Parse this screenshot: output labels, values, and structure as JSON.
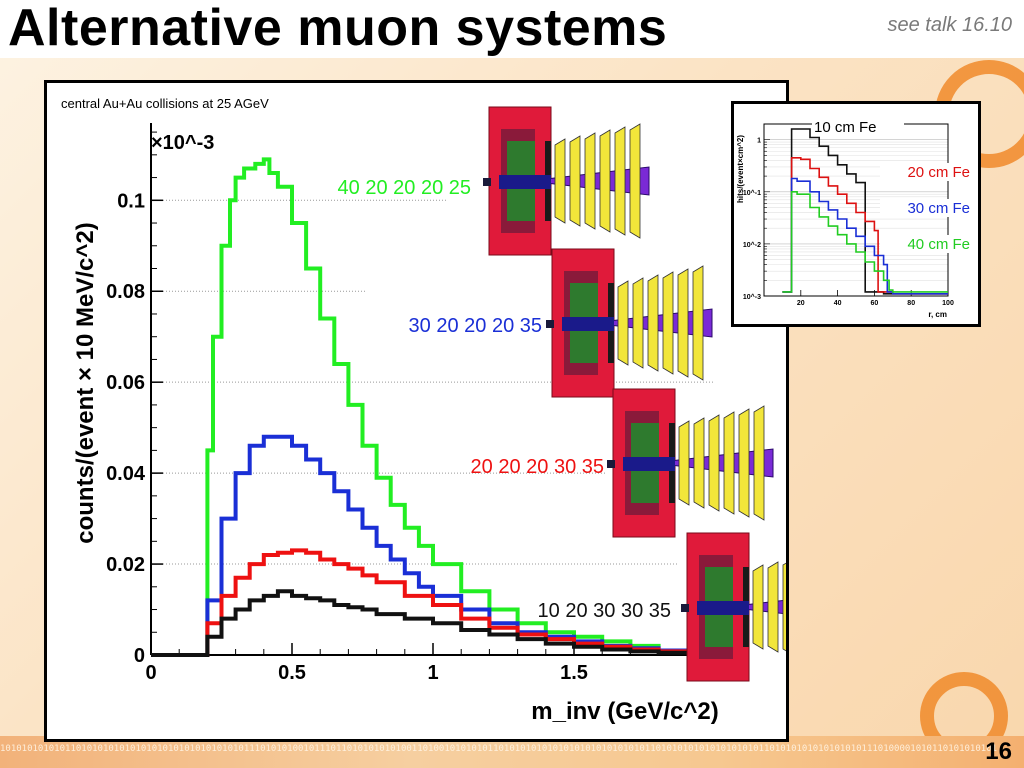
{
  "slide": {
    "title": "Alternative muon systems",
    "see_talk": "see talk 16.10",
    "page_number": "16",
    "binary_strip": "1010101010101101010101010101010101010101010101110101010010111011010101010100110100101010101101010101010101010101010101011010101010101010101011010101010101010101110100001010110101010101",
    "colors": {
      "accent": "#f08a2a",
      "background": "#fbe3c4"
    }
  },
  "chart_data": [
    {
      "type": "line",
      "title": "central Au+Au collisions at 25 AGeV",
      "xlabel": "m_inv (GeV/c^2)",
      "ylabel": "counts/(event × 10 MeV/c^2)",
      "y_multiplier": "×10^-3",
      "xlim": [
        0,
        2.0
      ],
      "ylim": [
        0,
        0.117
      ],
      "xticks": [
        "0",
        "0.5",
        "1",
        "1.5"
      ],
      "yticks": [
        "0",
        "0.02",
        "0.04",
        "0.06",
        "0.08",
        "0.1"
      ],
      "grid": "partial horizontal dotted",
      "series": [
        {
          "name": "40 20 20 20 25",
          "color": "#22ee22",
          "x": [
            0.19,
            0.2,
            0.22,
            0.25,
            0.28,
            0.3,
            0.33,
            0.35,
            0.37,
            0.4,
            0.42,
            0.45,
            0.5,
            0.55,
            0.6,
            0.65,
            0.7,
            0.75,
            0.8,
            0.85,
            0.9,
            0.95,
            1.0,
            1.1,
            1.2,
            1.3,
            1.4,
            1.5,
            1.6,
            1.7,
            1.8,
            1.9
          ],
          "y": [
            0,
            0.045,
            0.07,
            0.09,
            0.1,
            0.105,
            0.107,
            0.107,
            0.108,
            0.109,
            0.106,
            0.103,
            0.095,
            0.085,
            0.074,
            0.064,
            0.055,
            0.046,
            0.039,
            0.033,
            0.028,
            0.024,
            0.02,
            0.014,
            0.01,
            0.007,
            0.005,
            0.004,
            0.003,
            0.002,
            0.001,
            0.0005
          ]
        },
        {
          "name": "30 20 20 20 35",
          "color": "#1a2fd6",
          "x": [
            0.19,
            0.2,
            0.25,
            0.3,
            0.35,
            0.4,
            0.45,
            0.5,
            0.55,
            0.6,
            0.65,
            0.7,
            0.75,
            0.8,
            0.85,
            0.9,
            0.95,
            1.0,
            1.1,
            1.2,
            1.3,
            1.4,
            1.5,
            1.6,
            1.7,
            1.8,
            1.9
          ],
          "y": [
            0,
            0.012,
            0.03,
            0.04,
            0.046,
            0.048,
            0.048,
            0.046,
            0.043,
            0.04,
            0.036,
            0.032,
            0.028,
            0.024,
            0.021,
            0.018,
            0.015,
            0.013,
            0.01,
            0.007,
            0.005,
            0.004,
            0.003,
            0.002,
            0.0015,
            0.001,
            0.0005
          ]
        },
        {
          "name": "20 20 20 30 35",
          "color": "#ee1111",
          "x": [
            0.19,
            0.2,
            0.25,
            0.3,
            0.35,
            0.4,
            0.45,
            0.5,
            0.55,
            0.6,
            0.65,
            0.7,
            0.75,
            0.8,
            0.9,
            1.0,
            1.1,
            1.2,
            1.3,
            1.4,
            1.5,
            1.6,
            1.7,
            1.8,
            1.9
          ],
          "y": [
            0,
            0.007,
            0.013,
            0.017,
            0.02,
            0.022,
            0.0225,
            0.023,
            0.0225,
            0.021,
            0.02,
            0.019,
            0.0175,
            0.016,
            0.013,
            0.011,
            0.008,
            0.006,
            0.0045,
            0.0035,
            0.0025,
            0.0018,
            0.0012,
            0.0008,
            0.0004
          ]
        },
        {
          "name": "10 20 30 30 35",
          "color": "#111111",
          "x": [
            0.19,
            0.2,
            0.25,
            0.3,
            0.35,
            0.4,
            0.45,
            0.5,
            0.55,
            0.6,
            0.65,
            0.7,
            0.75,
            0.8,
            0.9,
            1.0,
            1.1,
            1.2,
            1.3,
            1.4,
            1.5,
            1.6,
            1.7,
            1.8,
            1.9
          ],
          "y": [
            0,
            0.004,
            0.008,
            0.01,
            0.012,
            0.013,
            0.014,
            0.013,
            0.0125,
            0.012,
            0.011,
            0.0105,
            0.01,
            0.009,
            0.008,
            0.007,
            0.0055,
            0.0045,
            0.0035,
            0.0025,
            0.0018,
            0.0012,
            0.0008,
            0.0005,
            0.0003
          ]
        }
      ]
    },
    {
      "type": "line",
      "title": "",
      "xlabel": "r, cm",
      "ylabel": "hits/(event×cm^2)",
      "yscale": "log",
      "xlim": [
        0,
        100
      ],
      "ylim": [
        0.001,
        2
      ],
      "xticks": [
        "20",
        "40",
        "60",
        "80",
        "100"
      ],
      "yticks": [
        "10^-3",
        "10^-2",
        "10^-1",
        "1"
      ],
      "grid": "horizontal",
      "series": [
        {
          "name": "10 cm Fe",
          "color": "#111111",
          "x": [
            10,
            14,
            15,
            20,
            25,
            30,
            35,
            40,
            45,
            50,
            55,
            60,
            65,
            70,
            75,
            80,
            90,
            100
          ],
          "y": [
            0.0012,
            0.0012,
            1.6,
            1.6,
            1.1,
            0.75,
            0.5,
            0.33,
            0.22,
            0.15,
            0.0012,
            0.0012,
            0.0011,
            0.0011,
            0.0011,
            0.0011,
            0.0011,
            0.0011
          ]
        },
        {
          "name": "20 cm Fe",
          "color": "#dd1111",
          "x": [
            10,
            14,
            15,
            20,
            25,
            30,
            35,
            40,
            45,
            50,
            55,
            60,
            62,
            65,
            70,
            80,
            90,
            100
          ],
          "y": [
            0.0012,
            0.0012,
            0.45,
            0.42,
            0.28,
            0.19,
            0.13,
            0.09,
            0.06,
            0.04,
            0.027,
            0.018,
            0.0012,
            0.0012,
            0.0011,
            0.0011,
            0.0011,
            0.0011
          ]
        },
        {
          "name": "30 cm Fe",
          "color": "#1a2fd6",
          "x": [
            10,
            14,
            15,
            18,
            25,
            30,
            35,
            40,
            45,
            50,
            55,
            60,
            65,
            67,
            70,
            80,
            90,
            100
          ],
          "y": [
            0.0012,
            0.0012,
            0.18,
            0.16,
            0.1,
            0.065,
            0.045,
            0.03,
            0.02,
            0.014,
            0.009,
            0.006,
            0.004,
            0.0012,
            0.0011,
            0.0011,
            0.0011,
            0.0011
          ]
        },
        {
          "name": "40 cm Fe",
          "color": "#22cc22",
          "x": [
            10,
            14,
            15,
            18,
            25,
            30,
            35,
            40,
            45,
            50,
            55,
            60,
            65,
            68,
            70,
            80,
            90,
            100
          ],
          "y": [
            0.0012,
            0.0012,
            0.1,
            0.09,
            0.05,
            0.033,
            0.022,
            0.015,
            0.01,
            0.007,
            0.0045,
            0.003,
            0.002,
            0.0013,
            0.0012,
            0.0012,
            0.0012,
            0.0012
          ]
        }
      ]
    }
  ],
  "detectors": [
    {
      "label": "40 20 20 20 25",
      "color": "#22ee22"
    },
    {
      "label": "30 20 20 20 35",
      "color": "#1a2fd6"
    },
    {
      "label": "20 20 20 30 35",
      "color": "#ee1111"
    },
    {
      "label": "10 20 30 30 35",
      "color": "#111111"
    }
  ]
}
